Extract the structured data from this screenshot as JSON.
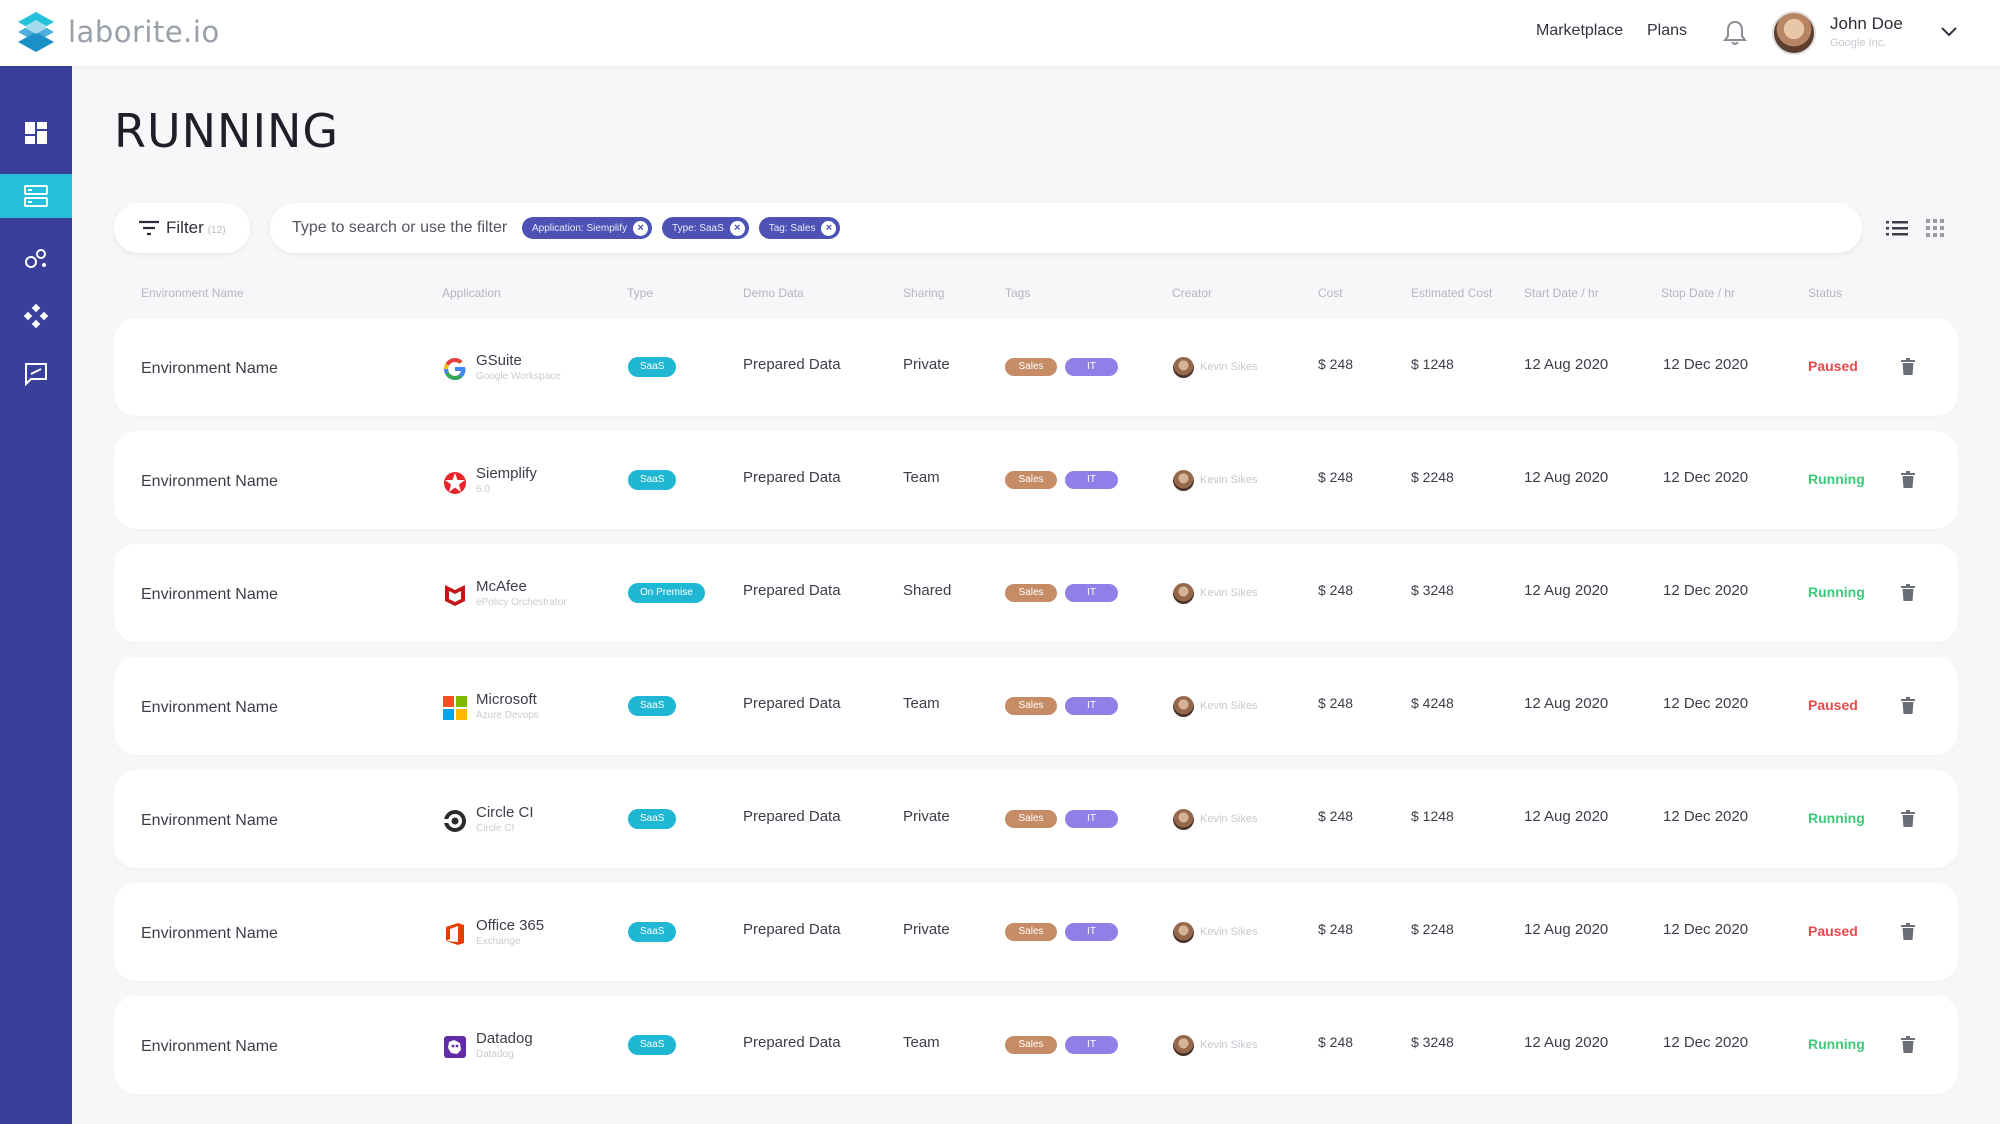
{
  "app": {
    "logo_text": "laborite.io"
  },
  "header": {
    "nav": [
      "Marketplace",
      "Plans"
    ],
    "user": {
      "name": "John Doe",
      "company": "Google Inc."
    }
  },
  "sidebar": {
    "items": [
      {
        "icon": "dashboard-icon",
        "active": false
      },
      {
        "icon": "environments-icon",
        "active": true
      },
      {
        "icon": "integrations-icon",
        "active": false
      },
      {
        "icon": "workflow-icon",
        "active": false
      },
      {
        "icon": "feedback-icon",
        "active": false
      }
    ]
  },
  "page": {
    "title": "RUNNING"
  },
  "filter": {
    "label": "Filter",
    "count": "(12)"
  },
  "search": {
    "placeholder": "Type to search or use the filter",
    "chips": [
      "Application: Siemplify",
      "Type: SaaS",
      "Tag: Sales"
    ]
  },
  "columns": [
    "Environment Name",
    "Application",
    "Type",
    "Demo Data",
    "Sharing",
    "Tags",
    "Creator",
    "Cost",
    "Estimated Cost",
    "Start Date / hr",
    "Stop Date / hr",
    "Status"
  ],
  "colors": {
    "sidebar": "#3a3f9c",
    "accent": "#25c1dc",
    "chip": "#4d52b4",
    "paused": "#ef4848",
    "running": "#3cca78"
  },
  "rows": [
    {
      "env": "Environment Name",
      "app": "GSuite",
      "app_sub": "Google Workspace",
      "logo": "gsuite-logo",
      "type": "SaaS",
      "demo": "Prepared Data",
      "sharing": "Private",
      "tags": [
        "Sales",
        "IT"
      ],
      "creator": "Kevin Sikes",
      "cost": "$ 248",
      "est": "$ 1248",
      "start": "12 Aug 2020",
      "stop": "12 Dec 2020",
      "status": "Paused"
    },
    {
      "env": "Environment Name",
      "app": "Siemplify",
      "app_sub": "6.0",
      "logo": "siemplify-logo",
      "type": "SaaS",
      "demo": "Prepared Data",
      "sharing": "Team",
      "tags": [
        "Sales",
        "IT"
      ],
      "creator": "Kevin Sikes",
      "cost": "$ 248",
      "est": "$ 2248",
      "start": "12 Aug 2020",
      "stop": "12 Dec 2020",
      "status": "Running"
    },
    {
      "env": "Environment Name",
      "app": "McAfee",
      "app_sub": "ePolicy Orchestrator",
      "logo": "mcafee-logo",
      "type": "On Premise",
      "demo": "Prepared Data",
      "sharing": "Shared",
      "tags": [
        "Sales",
        "IT"
      ],
      "creator": "Kevin Sikes",
      "cost": "$ 248",
      "est": "$ 3248",
      "start": "12 Aug 2020",
      "stop": "12 Dec 2020",
      "status": "Running"
    },
    {
      "env": "Environment Name",
      "app": "Microsoft",
      "app_sub": "Azure Devops",
      "logo": "microsoft-logo",
      "type": "SaaS",
      "demo": "Prepared Data",
      "sharing": "Team",
      "tags": [
        "Sales",
        "IT"
      ],
      "creator": "Kevin Sikes",
      "cost": "$ 248",
      "est": "$ 4248",
      "start": "12 Aug 2020",
      "stop": "12 Dec 2020",
      "status": "Paused"
    },
    {
      "env": "Environment Name",
      "app": "Circle CI",
      "app_sub": "Circle CI",
      "logo": "circleci-logo",
      "type": "SaaS",
      "demo": "Prepared Data",
      "sharing": "Private",
      "tags": [
        "Sales",
        "IT"
      ],
      "creator": "Kevin Sikes",
      "cost": "$ 248",
      "est": "$ 1248",
      "start": "12 Aug 2020",
      "stop": "12 Dec 2020",
      "status": "Running"
    },
    {
      "env": "Environment Name",
      "app": "Office 365",
      "app_sub": "Exchange",
      "logo": "office365-logo",
      "type": "SaaS",
      "demo": "Prepared Data",
      "sharing": "Private",
      "tags": [
        "Sales",
        "IT"
      ],
      "creator": "Kevin Sikes",
      "cost": "$ 248",
      "est": "$ 2248",
      "start": "12 Aug 2020",
      "stop": "12 Dec 2020",
      "status": "Paused"
    },
    {
      "env": "Environment Name",
      "app": "Datadog",
      "app_sub": "Datadog",
      "logo": "datadog-logo",
      "type": "SaaS",
      "demo": "Prepared Data",
      "sharing": "Team",
      "tags": [
        "Sales",
        "IT"
      ],
      "creator": "Kevin Sikes",
      "cost": "$ 248",
      "est": "$ 3248",
      "start": "12 Aug 2020",
      "stop": "12 Dec 2020",
      "status": "Running"
    }
  ]
}
